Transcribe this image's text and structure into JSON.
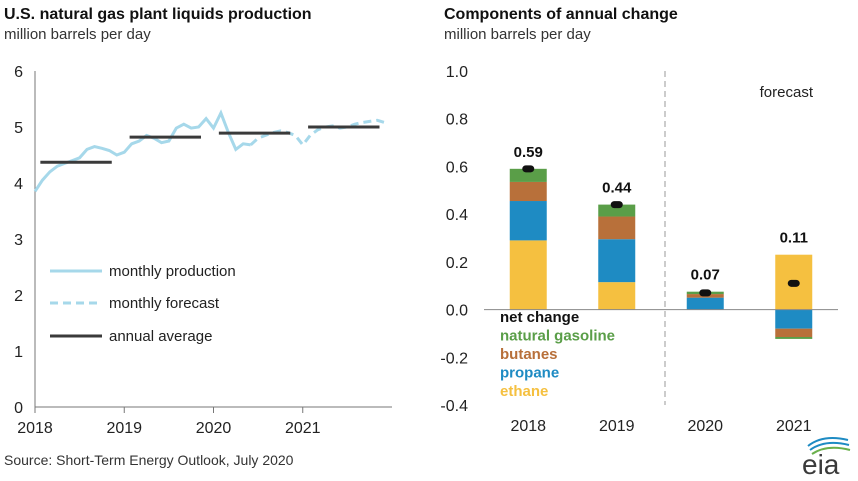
{
  "chart_data": [
    {
      "type": "line",
      "title": "U.S. natural gas plant liquids production",
      "subtitle": "million barrels per day",
      "xlim": [
        2018,
        2022
      ],
      "ylim": [
        0,
        6
      ],
      "yticks": [
        0,
        1,
        2,
        3,
        4,
        5,
        6
      ],
      "xticks": [
        "2018",
        "2019",
        "2020",
        "2021"
      ],
      "legend_position": "bottom-left",
      "grid": false,
      "series": [
        {
          "name": "monthly production",
          "style": "solid",
          "color": "#a6d8ea",
          "x": [
            2018.0,
            2018.083,
            2018.167,
            2018.25,
            2018.333,
            2018.417,
            2018.5,
            2018.583,
            2018.667,
            2018.75,
            2018.833,
            2018.917,
            2019.0,
            2019.083,
            2019.167,
            2019.25,
            2019.333,
            2019.417,
            2019.5,
            2019.583,
            2019.667,
            2019.75,
            2019.833,
            2019.917,
            2020.0,
            2020.083,
            2020.167,
            2020.25,
            2020.333,
            2020.417
          ],
          "y": [
            3.85,
            4.05,
            4.2,
            4.3,
            4.35,
            4.4,
            4.45,
            4.6,
            4.65,
            4.62,
            4.58,
            4.5,
            4.55,
            4.7,
            4.75,
            4.85,
            4.8,
            4.72,
            4.75,
            4.98,
            5.05,
            4.98,
            5.0,
            5.15,
            4.98,
            5.25,
            4.9,
            4.6,
            4.7,
            4.68
          ]
        },
        {
          "name": "monthly forecast",
          "style": "dashed",
          "color": "#a6d8ea",
          "x": [
            2020.417,
            2020.5,
            2020.583,
            2020.667,
            2020.75,
            2020.833,
            2020.917,
            2021.0,
            2021.083,
            2021.167,
            2021.25,
            2021.333,
            2021.417,
            2021.5,
            2021.583,
            2021.667,
            2021.75,
            2021.833,
            2021.917
          ],
          "y": [
            4.68,
            4.8,
            4.85,
            4.9,
            4.93,
            4.9,
            4.85,
            4.68,
            4.85,
            4.95,
            5.0,
            5.02,
            4.98,
            5.0,
            5.05,
            5.08,
            5.1,
            5.12,
            5.08
          ]
        },
        {
          "name": "annual average",
          "style": "step",
          "color": "#3a3a3a",
          "segments": [
            {
              "year": 2018,
              "value": 4.37
            },
            {
              "year": 2019,
              "value": 4.82
            },
            {
              "year": 2020,
              "value": 4.89
            },
            {
              "year": 2021,
              "value": 5.0
            }
          ]
        }
      ]
    },
    {
      "type": "bar",
      "stacked": true,
      "title": "Components of annual change",
      "subtitle": "million barrels per day",
      "categories": [
        "2018",
        "2019",
        "2020",
        "2021"
      ],
      "ylim": [
        -0.4,
        1.0
      ],
      "yticks": [
        "1.0",
        "0.8",
        "0.6",
        "0.4",
        "0.2",
        "0.0",
        "-0.2",
        "-0.4"
      ],
      "annotation": "forecast",
      "forecast_starts_after": "2019",
      "legend_position": "bottom-left",
      "series": [
        {
          "name": "ethane",
          "color": "#f5c040",
          "values": [
            0.29,
            0.115,
            0.0,
            0.23
          ]
        },
        {
          "name": "propane",
          "color": "#1e8bc3",
          "values": [
            0.165,
            0.18,
            0.05,
            -0.08
          ]
        },
        {
          "name": "butanes",
          "color": "#b8703a",
          "values": [
            0.08,
            0.095,
            0.015,
            -0.035
          ]
        },
        {
          "name": "natural gasoline",
          "color": "#5a9e48",
          "values": [
            0.055,
            0.05,
            0.01,
            -0.008
          ]
        }
      ],
      "net_change": {
        "name": "net change",
        "values": [
          0.59,
          0.44,
          0.07,
          0.11
        ],
        "labels": [
          "0.59",
          "0.44",
          "0.07",
          "0.11"
        ]
      }
    }
  ],
  "source": "Source: Short-Term Energy Outlook, July 2020",
  "logo": {
    "text": "eia",
    "color": "#3a3a3a",
    "accent": "#1e8bc3"
  }
}
